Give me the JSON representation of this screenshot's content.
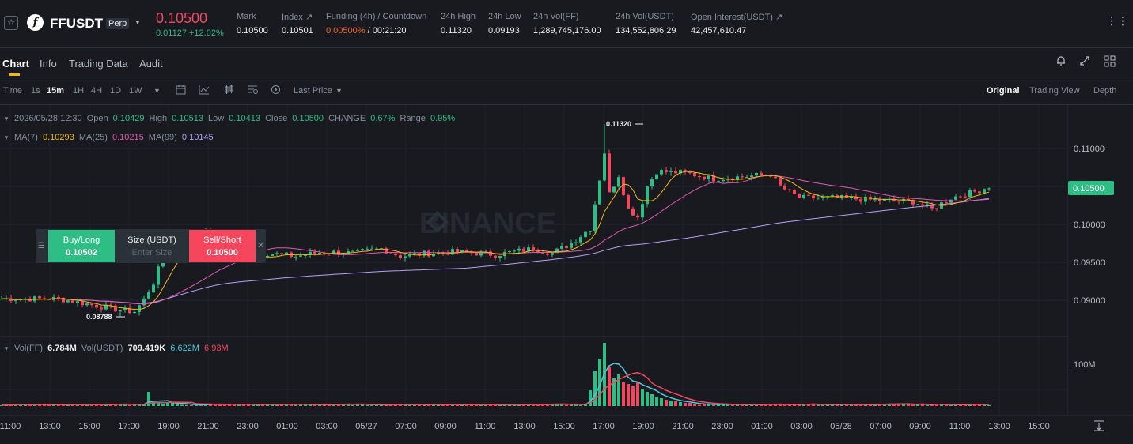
{
  "header": {
    "symbol": "FFUSDT",
    "contract_badge": "Perp",
    "last_price": "0.10500",
    "change": "0.01127 +12.02%",
    "stats": [
      {
        "label": "Mark",
        "value": "0.10500"
      },
      {
        "label": "Index ↗",
        "value": "0.10501"
      },
      {
        "label": "Funding (4h) / Countdown",
        "value_red": "0.00500%",
        "value_rest": " / 00:21:20"
      },
      {
        "label": "24h High",
        "value": "0.11320"
      },
      {
        "label": "24h Low",
        "value": "0.09193"
      },
      {
        "label": "24h Vol(FF)",
        "value": "1,289,745,176.00"
      },
      {
        "label": "24h Vol(USDT)",
        "value": "134,552,806.29"
      },
      {
        "label": "Open Interest(USDT) ↗",
        "value": "42,457,610.47"
      }
    ]
  },
  "tabs": [
    "Chart",
    "Info",
    "Trading Data",
    "Audit"
  ],
  "toolbar": {
    "time_label": "Time",
    "intervals": [
      "1s",
      "15m",
      "1H",
      "4H",
      "1D",
      "1W"
    ],
    "selected_interval": "15m",
    "price_type": "Last Price",
    "views": [
      "Original",
      "Trading View",
      "Depth"
    ],
    "selected_view": "Original"
  },
  "ohlc_legend": {
    "datetime": "2026/05/28 12:30",
    "open_label": "Open",
    "open": "0.10429",
    "high_label": "High",
    "high": "0.10513",
    "low_label": "Low",
    "low": "0.10413",
    "close_label": "Close",
    "close": "0.10500",
    "change_label": "CHANGE",
    "change": "0.67%",
    "range_label": "Range",
    "range": "0.95%"
  },
  "ma_legend": [
    {
      "label": "MA(7)",
      "value": "0.10293",
      "color": "#f0b90b"
    },
    {
      "label": "MA(25)",
      "value": "0.10215",
      "color": "#e357b3"
    },
    {
      "label": "MA(99)",
      "value": "0.10145",
      "color": "#b79ef5"
    }
  ],
  "vol_legend": {
    "label": "Vol(FF)",
    "value": "6.784M",
    "usdt_label": "Vol(USDT)",
    "usdt_value": "709.419K",
    "ma1": "6.622M",
    "ma2": "6.93M"
  },
  "trade_widget": {
    "buy_label": "Buy/Long",
    "buy_price": "0.10502",
    "size_label": "Size (USDT)",
    "size_placeholder": "Enter Size",
    "sell_label": "Sell/Short",
    "sell_price": "0.10500"
  },
  "watermark": "BINANCE",
  "chart_data": {
    "type": "candlestick",
    "price_axis": [
      0.09,
      0.095,
      0.1,
      0.105,
      0.11
    ],
    "price_axis_labels": [
      "0.09000",
      "0.09500",
      "0.10000",
      "0.10500",
      "0.11000"
    ],
    "current_price_tag": "0.10500",
    "high_marker": "0.11320",
    "low_marker": "0.08788",
    "volume_axis_label": "100M",
    "time_labels": [
      "11:00",
      "13:00",
      "15:00",
      "17:00",
      "19:00",
      "21:00",
      "23:00",
      "01:00",
      "03:00",
      "05/27",
      "07:00",
      "09:00",
      "11:00",
      "13:00",
      "15:00",
      "17:00",
      "19:00",
      "21:00",
      "23:00",
      "01:00",
      "03:00",
      "05/28",
      "07:00",
      "09:00",
      "11:00",
      "13:00",
      "15:00"
    ],
    "ma_colors": {
      "ma7": "#f0b90b",
      "ma25": "#e357b3",
      "ma99": "#b79ef5"
    },
    "up_color": "#2ebd85",
    "down_color": "#f6465d",
    "close_path": [
      [
        0,
        0.0902
      ],
      [
        12,
        0.0902
      ],
      [
        25,
        0.0887
      ],
      [
        28,
        0.0885
      ],
      [
        30,
        0.0901
      ],
      [
        32,
        0.0923
      ],
      [
        34,
        0.0958
      ],
      [
        36,
        0.0972
      ],
      [
        40,
        0.0985
      ],
      [
        44,
        0.0988
      ],
      [
        48,
        0.0962
      ],
      [
        52,
        0.0955
      ],
      [
        56,
        0.0962
      ],
      [
        62,
        0.0958
      ],
      [
        68,
        0.0964
      ],
      [
        74,
        0.0962
      ],
      [
        80,
        0.0968
      ],
      [
        84,
        0.0958
      ],
      [
        90,
        0.0962
      ],
      [
        96,
        0.0964
      ],
      [
        104,
        0.096
      ],
      [
        108,
        0.0964
      ],
      [
        112,
        0.0968
      ],
      [
        116,
        0.0962
      ],
      [
        120,
        0.0975
      ],
      [
        124,
        0.0995
      ],
      [
        126,
        0.106
      ],
      [
        127,
        0.1095
      ],
      [
        128,
        0.104
      ],
      [
        130,
        0.1065
      ],
      [
        132,
        0.102
      ],
      [
        134,
        0.101
      ],
      [
        136,
        0.105
      ],
      [
        138,
        0.107
      ],
      [
        144,
        0.1068
      ],
      [
        150,
        0.106
      ],
      [
        156,
        0.1063
      ],
      [
        162,
        0.1066
      ],
      [
        164,
        0.105
      ],
      [
        168,
        0.1035
      ],
      [
        176,
        0.1035
      ],
      [
        184,
        0.1032
      ],
      [
        192,
        0.103
      ],
      [
        196,
        0.102
      ],
      [
        200,
        0.1035
      ],
      [
        206,
        0.1045
      ],
      [
        208,
        0.105
      ]
    ],
    "high_value": 0.1132,
    "low_value": 0.08788
  }
}
